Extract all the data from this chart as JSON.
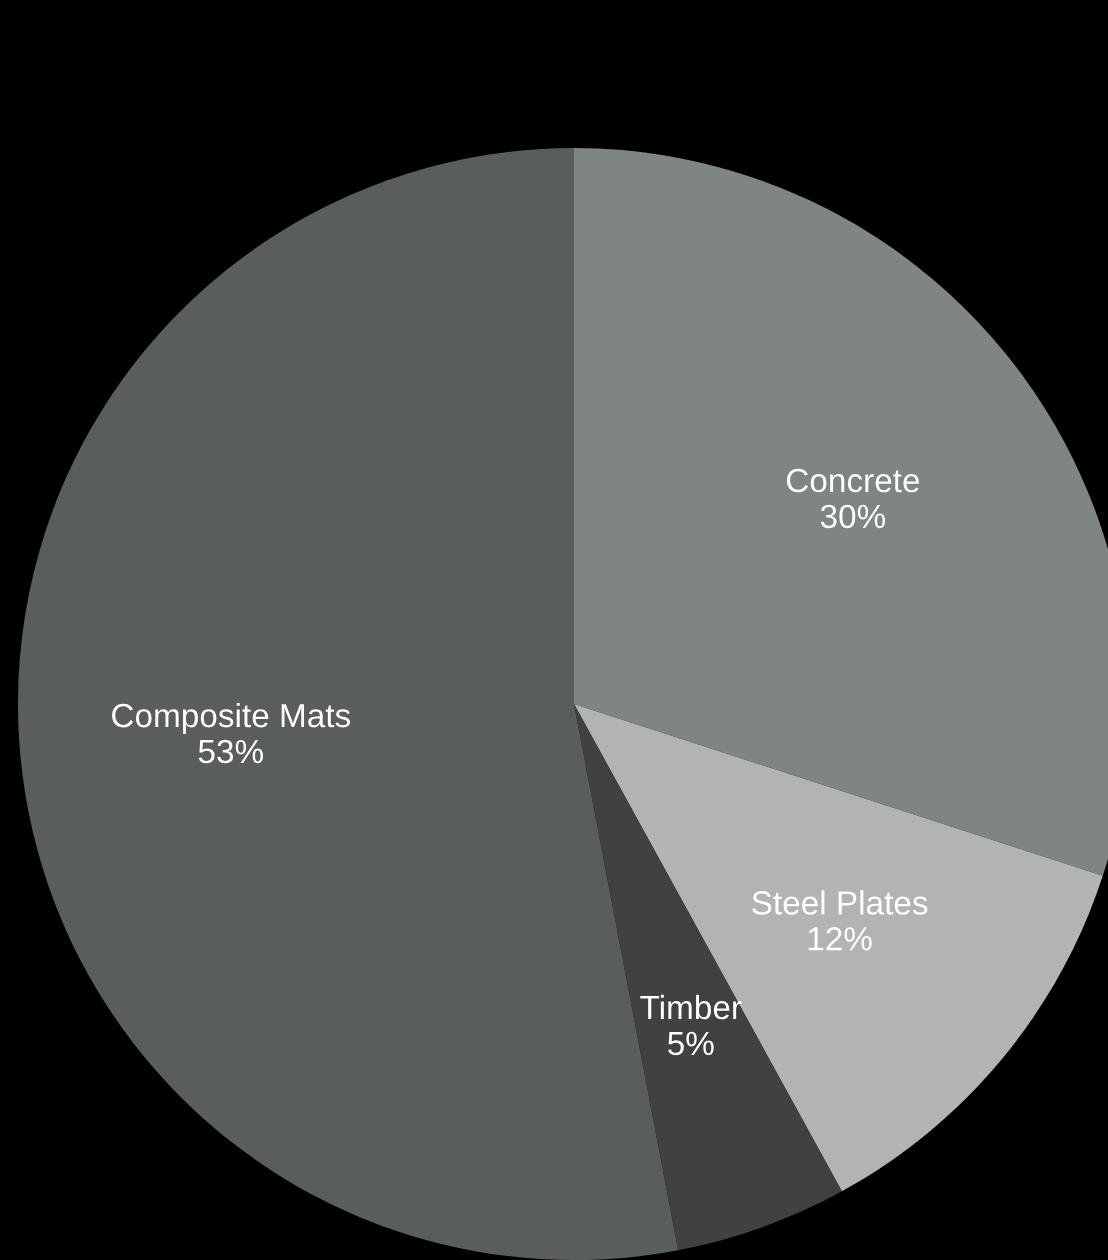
{
  "chart_data": {
    "type": "pie",
    "categories": [
      "Concrete",
      "Steel Plates",
      "Timber",
      "Composite Mats"
    ],
    "values": [
      30,
      12,
      5,
      53
    ],
    "colors": [
      "#7f8580",
      "#b3b3b3",
      "#3f4240",
      "#5a5e5b"
    ],
    "value_labels": [
      "30%",
      "12%",
      "5%",
      "53%"
    ]
  }
}
